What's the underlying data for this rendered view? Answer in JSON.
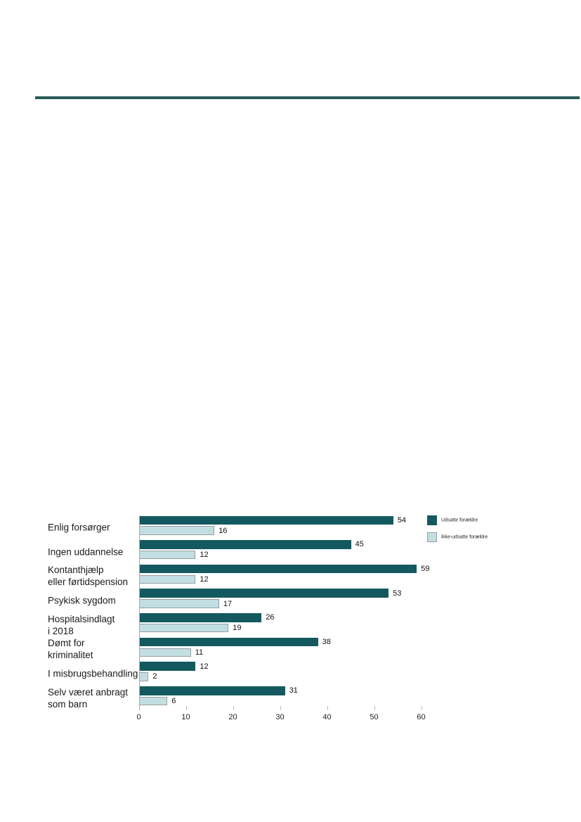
{
  "page": {
    "background": "#ffffff",
    "header_rule_color": "#265a58"
  },
  "chart_data": {
    "type": "bar",
    "orientation": "horizontal",
    "title": "",
    "xlabel": "",
    "ylabel": "",
    "xlim": [
      0,
      60
    ],
    "x_ticks": [
      0,
      10,
      20,
      30,
      40,
      50,
      60
    ],
    "grid": false,
    "legend_position": "top-right",
    "categories": [
      {
        "label_lines": [
          "Enlig forsørger"
        ]
      },
      {
        "label_lines": [
          "Ingen uddannelse"
        ]
      },
      {
        "label_lines": [
          "Kontanthjælp",
          "eller førtidspension"
        ]
      },
      {
        "label_lines": [
          "Psykisk sygdom"
        ]
      },
      {
        "label_lines": [
          "Hospitalsindlagt",
          "i 2018"
        ]
      },
      {
        "label_lines": [
          "Dømt for",
          "kriminalitet"
        ]
      },
      {
        "label_lines": [
          "I misbrugsbehandling"
        ]
      },
      {
        "label_lines": [
          "Selv været anbragt",
          "som barn"
        ]
      }
    ],
    "series": [
      {
        "name": "Udsatte forældre",
        "color": "#14595f",
        "values": [
          54,
          45,
          59,
          53,
          26,
          38,
          12,
          31
        ]
      },
      {
        "name": "Ikke-udsatte forældre",
        "color": "#c2dee2",
        "values": [
          16,
          12,
          12,
          17,
          19,
          11,
          2,
          6
        ]
      }
    ],
    "axis_color": "#a9a9a9",
    "tick_color": "#bdbdbd",
    "text_color": "#1a1a1a"
  }
}
